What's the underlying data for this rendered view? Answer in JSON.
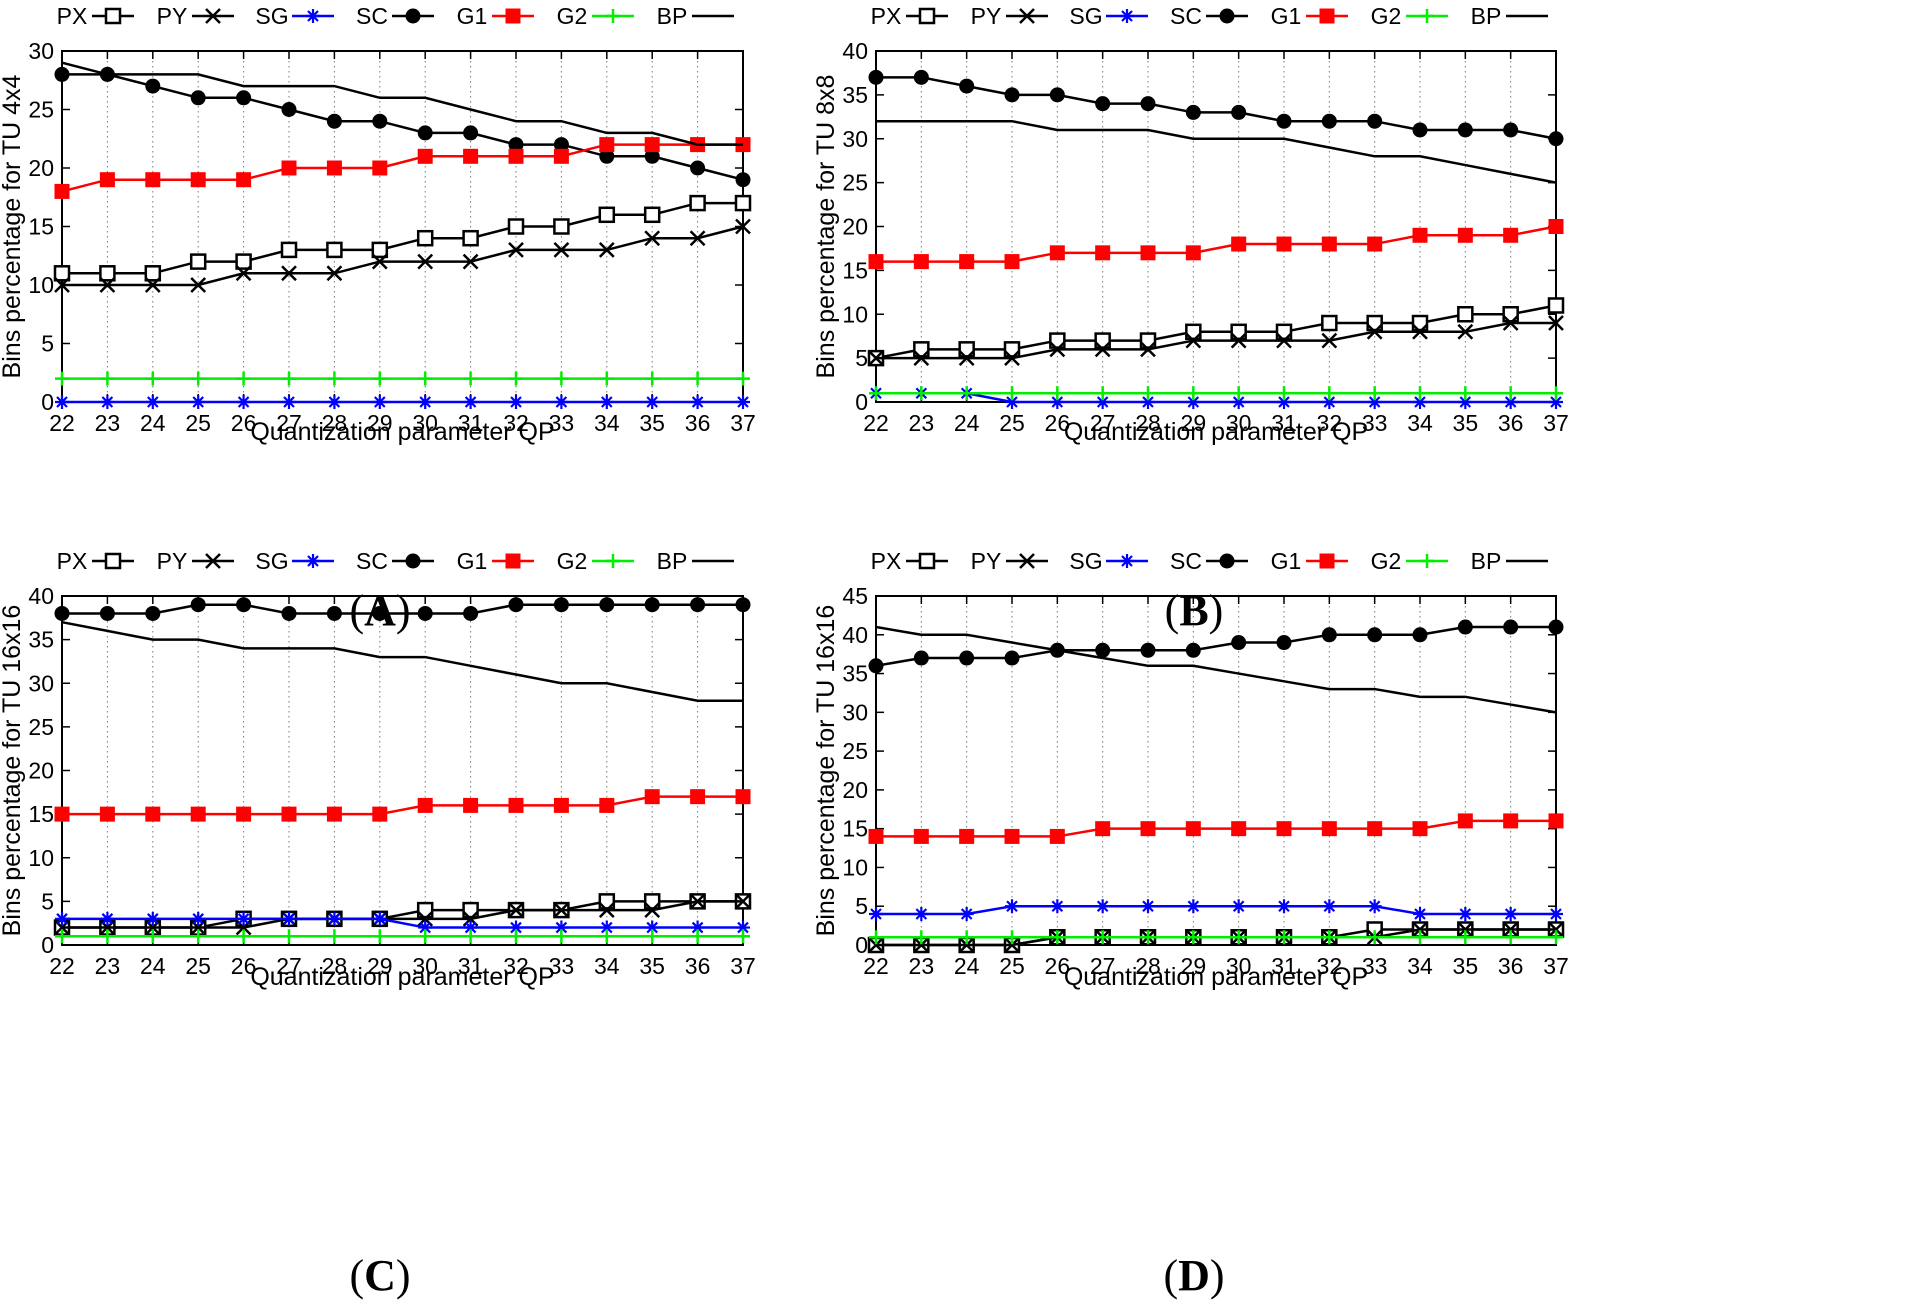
{
  "series_styles": [
    {
      "key": "PX",
      "label": "PX",
      "color": "#000000",
      "marker": "open-square"
    },
    {
      "key": "PY",
      "label": "PY",
      "color": "#000000",
      "marker": "x"
    },
    {
      "key": "SG",
      "label": "SG",
      "color": "#0000ff",
      "marker": "star"
    },
    {
      "key": "SC",
      "label": "SC",
      "color": "#000000",
      "marker": "filled-circle"
    },
    {
      "key": "G1",
      "label": "G1",
      "color": "#ff0000",
      "marker": "filled-square"
    },
    {
      "key": "G2",
      "label": "G2",
      "color": "#00ee00",
      "marker": "plus"
    },
    {
      "key": "BP",
      "label": "BP",
      "color": "#000000",
      "marker": "none"
    }
  ],
  "chart_data": [
    {
      "type": "line",
      "panel": "A",
      "caption_letter": "A",
      "caption_open": "(",
      "caption_close": ")",
      "xlabel": "Quantization parameter QP",
      "ylabel": "Bins percentage for TU 4x4",
      "ylim": [
        0,
        30
      ],
      "yticks": [
        0,
        5,
        10,
        15,
        20,
        25,
        30
      ],
      "x": [
        22,
        23,
        24,
        25,
        26,
        27,
        28,
        29,
        30,
        31,
        32,
        33,
        34,
        35,
        36,
        37
      ],
      "grid": "vertical-dotted",
      "legend": "top-outside",
      "series": [
        {
          "name": "PX",
          "values": [
            11,
            11,
            11,
            12,
            12,
            13,
            13,
            13,
            14,
            14,
            15,
            15,
            16,
            16,
            17,
            17
          ]
        },
        {
          "name": "PY",
          "values": [
            10,
            10,
            10,
            10,
            11,
            11,
            11,
            12,
            12,
            12,
            13,
            13,
            13,
            14,
            14,
            15
          ]
        },
        {
          "name": "SG",
          "values": [
            0,
            0,
            0,
            0,
            0,
            0,
            0,
            0,
            0,
            0,
            0,
            0,
            0,
            0,
            0,
            0
          ]
        },
        {
          "name": "SC",
          "values": [
            28,
            28,
            27,
            26,
            26,
            25,
            24,
            24,
            23,
            23,
            22,
            22,
            21,
            21,
            20,
            19
          ]
        },
        {
          "name": "G1",
          "values": [
            18,
            19,
            19,
            19,
            19,
            20,
            20,
            20,
            21,
            21,
            21,
            21,
            22,
            22,
            22,
            22
          ]
        },
        {
          "name": "G2",
          "values": [
            2,
            2,
            2,
            2,
            2,
            2,
            2,
            2,
            2,
            2,
            2,
            2,
            2,
            2,
            2,
            2
          ]
        },
        {
          "name": "BP",
          "values": [
            29,
            28,
            28,
            28,
            27,
            27,
            27,
            26,
            26,
            25,
            24,
            24,
            23,
            23,
            22,
            22
          ]
        }
      ]
    },
    {
      "type": "line",
      "panel": "B",
      "caption_letter": "B",
      "caption_open": "(",
      "caption_close": ")",
      "xlabel": "Quantization parameter QP",
      "ylabel": "Bins percentage for TU 8x8",
      "ylim": [
        0,
        40
      ],
      "yticks": [
        0,
        5,
        10,
        15,
        20,
        25,
        30,
        35,
        40
      ],
      "x": [
        22,
        23,
        24,
        25,
        26,
        27,
        28,
        29,
        30,
        31,
        32,
        33,
        34,
        35,
        36,
        37
      ],
      "grid": "vertical-dotted",
      "legend": "top-outside",
      "series": [
        {
          "name": "PX",
          "values": [
            5,
            6,
            6,
            6,
            7,
            7,
            7,
            8,
            8,
            8,
            9,
            9,
            9,
            10,
            10,
            11
          ]
        },
        {
          "name": "PY",
          "values": [
            5,
            5,
            5,
            5,
            6,
            6,
            6,
            7,
            7,
            7,
            7,
            8,
            8,
            8,
            9,
            9
          ]
        },
        {
          "name": "SG",
          "values": [
            1,
            1,
            1,
            0,
            0,
            0,
            0,
            0,
            0,
            0,
            0,
            0,
            0,
            0,
            0,
            0
          ]
        },
        {
          "name": "SC",
          "values": [
            37,
            37,
            36,
            35,
            35,
            34,
            34,
            33,
            33,
            32,
            32,
            32,
            31,
            31,
            31,
            30
          ]
        },
        {
          "name": "G1",
          "values": [
            16,
            16,
            16,
            16,
            17,
            17,
            17,
            17,
            18,
            18,
            18,
            18,
            19,
            19,
            19,
            20
          ]
        },
        {
          "name": "G2",
          "values": [
            1,
            1,
            1,
            1,
            1,
            1,
            1,
            1,
            1,
            1,
            1,
            1,
            1,
            1,
            1,
            1
          ]
        },
        {
          "name": "BP",
          "values": [
            32,
            32,
            32,
            32,
            31,
            31,
            31,
            30,
            30,
            30,
            29,
            28,
            28,
            27,
            26,
            25
          ]
        }
      ]
    },
    {
      "type": "line",
      "panel": "C",
      "caption_letter": "C",
      "caption_open": "(",
      "caption_close": ")",
      "xlabel": "Quantization parameter QP",
      "ylabel": "Bins percentage for TU 16x16",
      "ylim": [
        0,
        40
      ],
      "yticks": [
        0,
        5,
        10,
        15,
        20,
        25,
        30,
        35,
        40
      ],
      "x": [
        22,
        23,
        24,
        25,
        26,
        27,
        28,
        29,
        30,
        31,
        32,
        33,
        34,
        35,
        36,
        37
      ],
      "grid": "vertical-dotted",
      "legend": "top-outside",
      "series": [
        {
          "name": "PX",
          "values": [
            2,
            2,
            2,
            2,
            3,
            3,
            3,
            3,
            4,
            4,
            4,
            4,
            5,
            5,
            5,
            5
          ]
        },
        {
          "name": "PY",
          "values": [
            2,
            2,
            2,
            2,
            2,
            3,
            3,
            3,
            3,
            3,
            4,
            4,
            4,
            4,
            5,
            5
          ]
        },
        {
          "name": "SG",
          "values": [
            3,
            3,
            3,
            3,
            3,
            3,
            3,
            3,
            2,
            2,
            2,
            2,
            2,
            2,
            2,
            2
          ]
        },
        {
          "name": "SC",
          "values": [
            38,
            38,
            38,
            39,
            39,
            38,
            38,
            38,
            38,
            38,
            39,
            39,
            39,
            39,
            39,
            39
          ]
        },
        {
          "name": "G1",
          "values": [
            15,
            15,
            15,
            15,
            15,
            15,
            15,
            15,
            16,
            16,
            16,
            16,
            16,
            17,
            17,
            17
          ]
        },
        {
          "name": "G2",
          "values": [
            1,
            1,
            1,
            1,
            1,
            1,
            1,
            1,
            1,
            1,
            1,
            1,
            1,
            1,
            1,
            1
          ]
        },
        {
          "name": "BP",
          "values": [
            37,
            36,
            35,
            35,
            34,
            34,
            34,
            33,
            33,
            32,
            31,
            30,
            30,
            29,
            28,
            28
          ]
        }
      ]
    },
    {
      "type": "line",
      "panel": "D",
      "caption_letter": "D",
      "caption_open": "(",
      "caption_close": ")",
      "xlabel": "Quantization parameter QP",
      "ylabel": "Bins percentage for TU 16x16",
      "ylim": [
        0,
        45
      ],
      "yticks": [
        0,
        5,
        10,
        15,
        20,
        25,
        30,
        35,
        40,
        45
      ],
      "x": [
        22,
        23,
        24,
        25,
        26,
        27,
        28,
        29,
        30,
        31,
        32,
        33,
        34,
        35,
        36,
        37
      ],
      "grid": "vertical-dotted",
      "legend": "top-outside",
      "series": [
        {
          "name": "PX",
          "values": [
            0,
            0,
            0,
            0,
            1,
            1,
            1,
            1,
            1,
            1,
            1,
            2,
            2,
            2,
            2,
            2
          ]
        },
        {
          "name": "PY",
          "values": [
            0,
            0,
            0,
            0,
            1,
            1,
            1,
            1,
            1,
            1,
            1,
            1,
            2,
            2,
            2,
            2
          ]
        },
        {
          "name": "SG",
          "values": [
            4,
            4,
            4,
            5,
            5,
            5,
            5,
            5,
            5,
            5,
            5,
            5,
            4,
            4,
            4,
            4
          ]
        },
        {
          "name": "SC",
          "values": [
            36,
            37,
            37,
            37,
            38,
            38,
            38,
            38,
            39,
            39,
            40,
            40,
            40,
            41,
            41,
            41
          ]
        },
        {
          "name": "G1",
          "values": [
            14,
            14,
            14,
            14,
            14,
            15,
            15,
            15,
            15,
            15,
            15,
            15,
            15,
            16,
            16,
            16
          ]
        },
        {
          "name": "G2",
          "values": [
            1,
            1,
            1,
            1,
            1,
            1,
            1,
            1,
            1,
            1,
            1,
            1,
            1,
            1,
            1,
            1
          ]
        },
        {
          "name": "BP",
          "values": [
            41,
            40,
            40,
            39,
            38,
            37,
            36,
            36,
            35,
            34,
            33,
            33,
            32,
            32,
            31,
            30
          ]
        }
      ]
    }
  ]
}
